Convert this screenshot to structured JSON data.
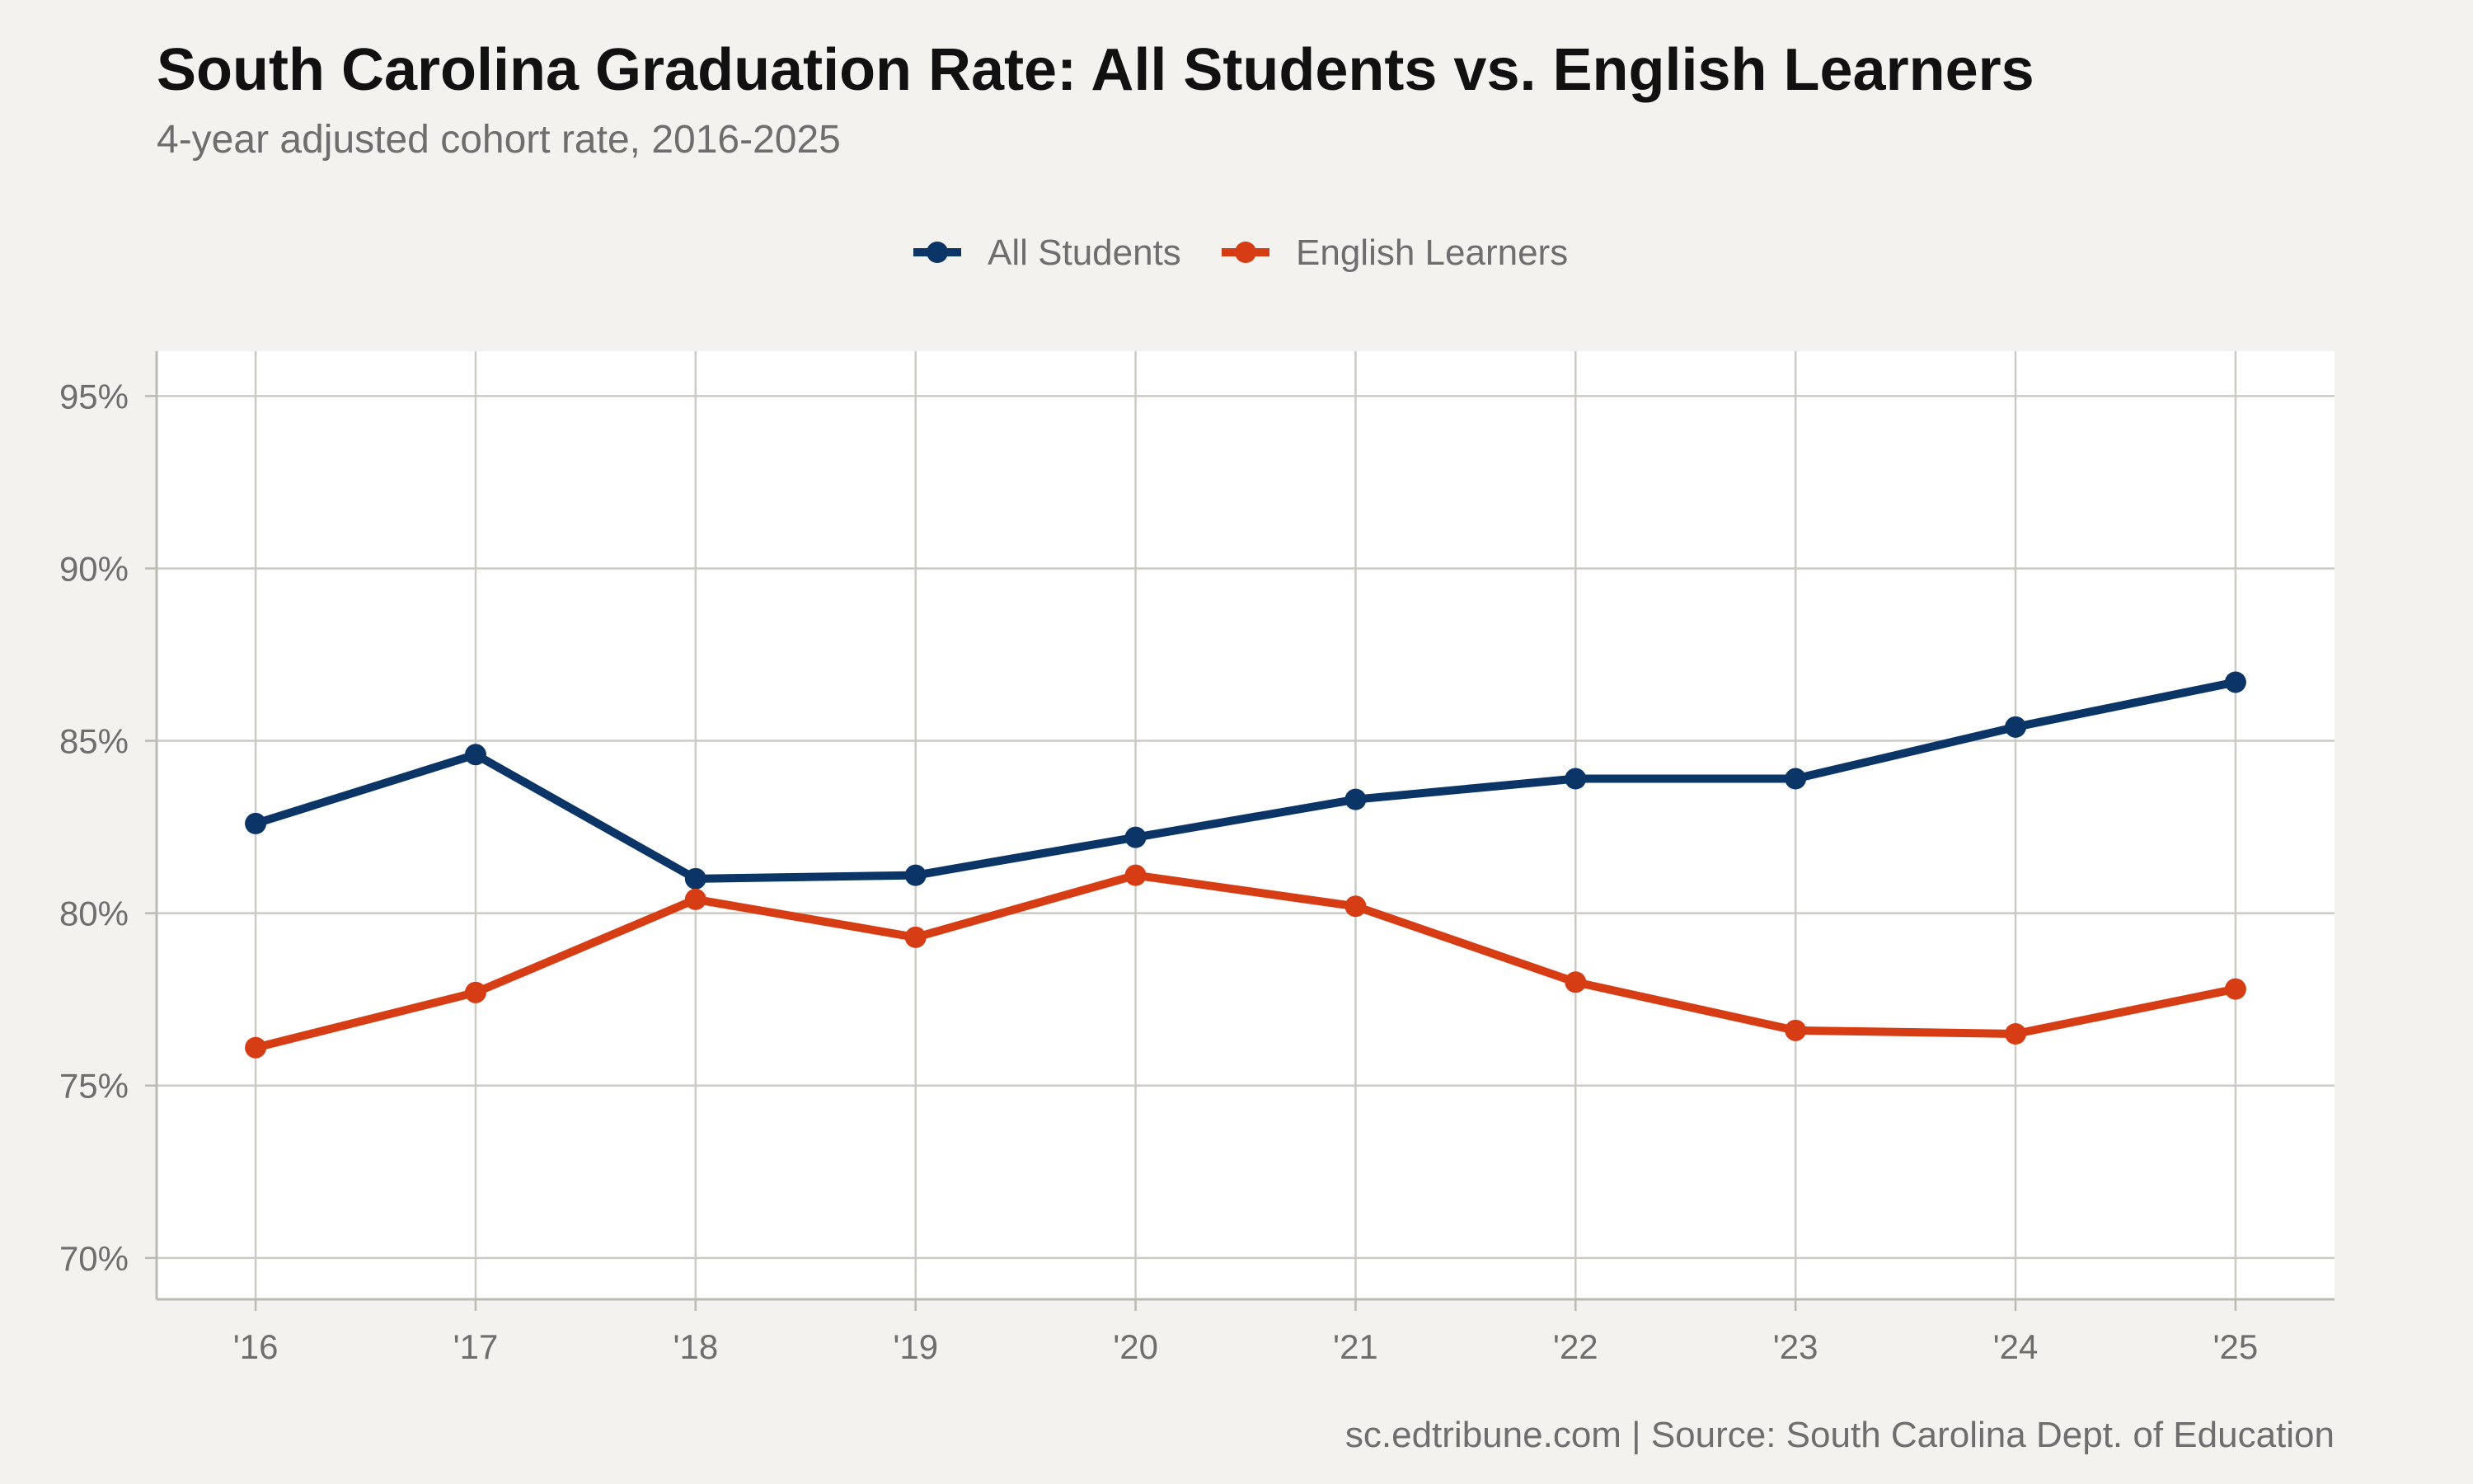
{
  "chart_data": {
    "type": "line",
    "title": "South Carolina Graduation Rate: All Students vs. English Learners",
    "subtitle": "4-year adjusted cohort rate, 2016-2025",
    "caption": "sc.edtribune.com | Source: South Carolina Dept. of Education",
    "x": [
      2016,
      2017,
      2018,
      2019,
      2020,
      2021,
      2022,
      2023,
      2024,
      2025
    ],
    "x_tick_labels": [
      "'16",
      "'17",
      "'18",
      "'19",
      "'20",
      "'21",
      "'22",
      "'23",
      "'24",
      "'25"
    ],
    "y_ticks": [
      70,
      75,
      80,
      85,
      90,
      95
    ],
    "y_tick_labels": [
      "70%",
      "75%",
      "80%",
      "85%",
      "90%",
      "95%"
    ],
    "ylim": [
      68.8,
      96.3
    ],
    "xlim": [
      2015.55,
      2025.45
    ],
    "grid": true,
    "legend_position": "top-center",
    "series": [
      {
        "name": "All Students",
        "color": "#0b3566",
        "values": [
          82.6,
          84.6,
          81.0,
          81.1,
          82.2,
          83.3,
          83.9,
          83.9,
          85.4,
          86.7
        ]
      },
      {
        "name": "English Learners",
        "color": "#d63d14",
        "values": [
          76.1,
          77.7,
          80.4,
          79.3,
          81.1,
          80.2,
          78.0,
          76.6,
          76.5,
          77.8
        ]
      }
    ]
  }
}
